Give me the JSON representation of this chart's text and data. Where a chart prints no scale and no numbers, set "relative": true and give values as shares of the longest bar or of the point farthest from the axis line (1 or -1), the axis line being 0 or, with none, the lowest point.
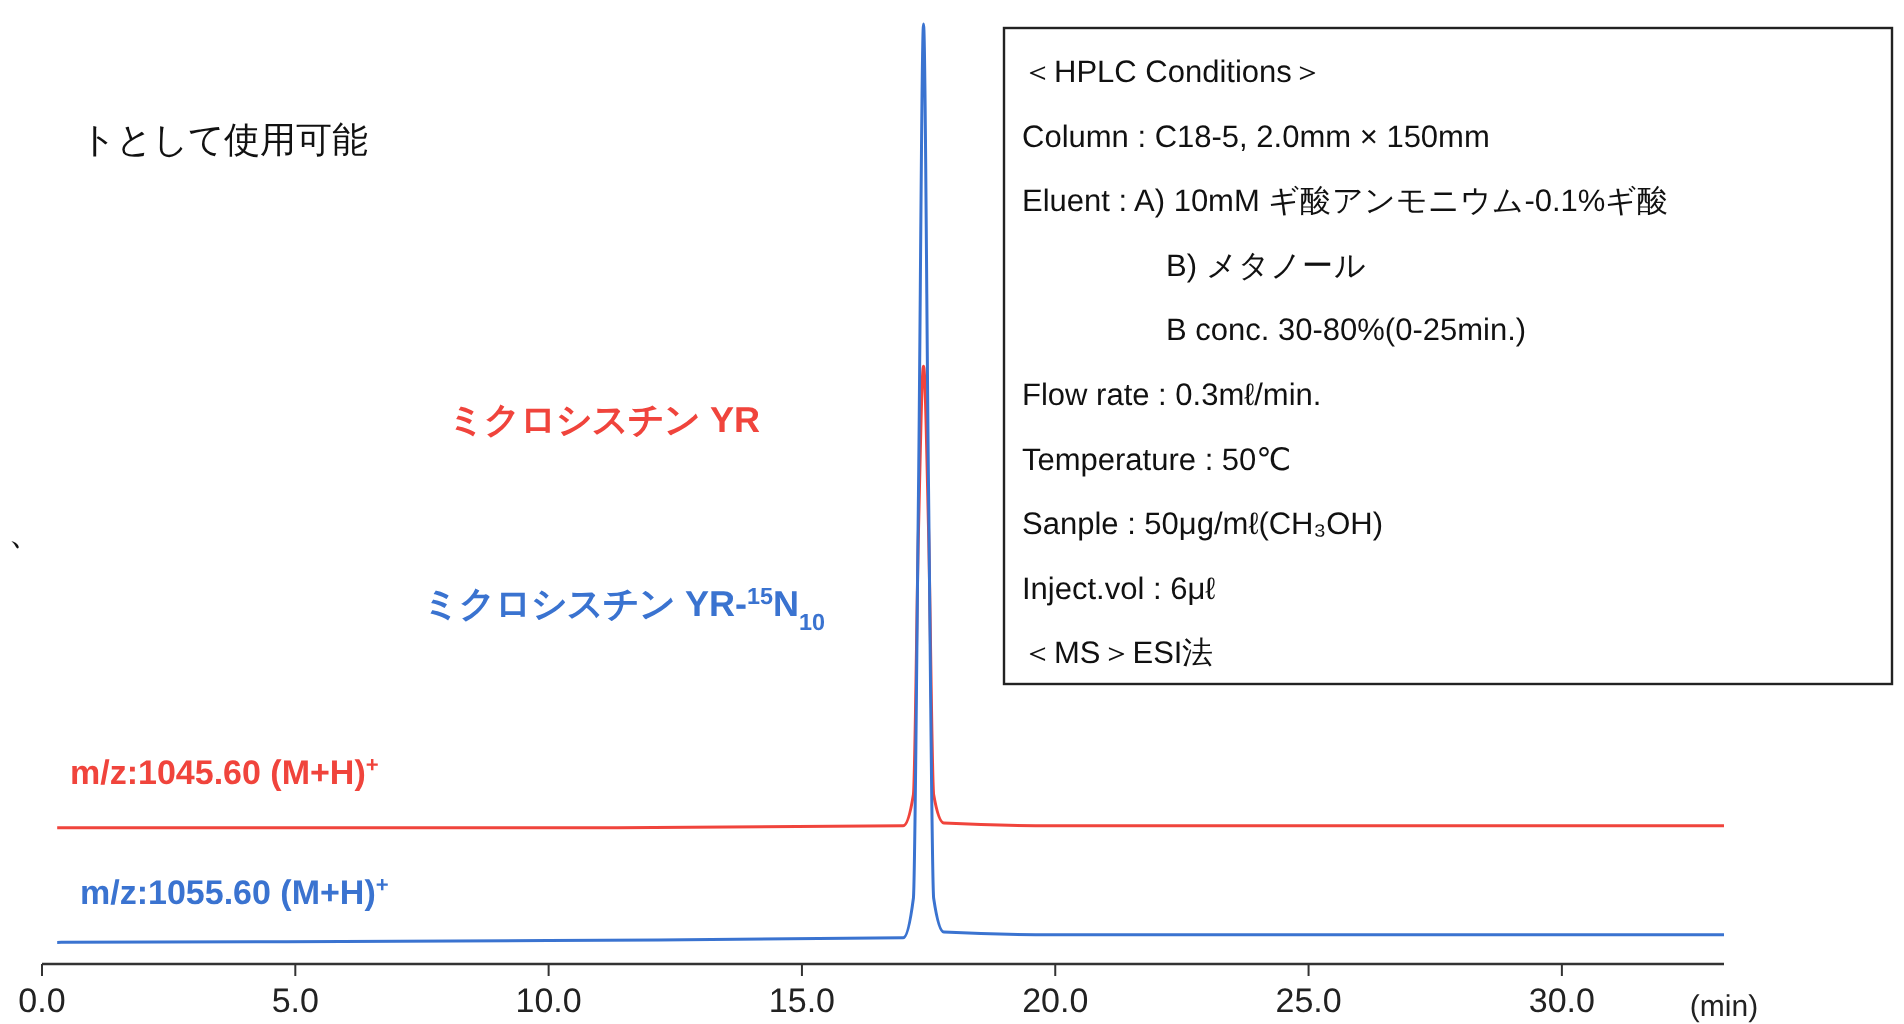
{
  "chart_data": {
    "type": "line",
    "relative": true,
    "xlabel": "(min)",
    "xlim": [
      0,
      33.2
    ],
    "xticks": [
      {
        "value": 0,
        "label": "0.0"
      },
      {
        "value": 5,
        "label": "5.0"
      },
      {
        "value": 10,
        "label": "10.0"
      },
      {
        "value": 15,
        "label": "15.0"
      },
      {
        "value": 20,
        "label": "20.0"
      },
      {
        "value": 25,
        "label": "25.0"
      },
      {
        "value": 30,
        "label": "30.0"
      }
    ],
    "grid": false,
    "marker": "none",
    "line_style": "solid",
    "series": [
      {
        "name": "m/z:1045.60 (M+H)$^{+}$",
        "color": "#f0443c",
        "x": [
          0.3,
          10,
          17.0,
          17.2,
          17.3,
          17.4,
          17.5,
          17.6,
          17.8,
          20,
          33.2
        ],
        "values": [
          0.145,
          0.145,
          0.147,
          0.18,
          0.46,
          0.636,
          0.46,
          0.18,
          0.15,
          0.147,
          0.147
        ]
      },
      {
        "name": "m/z:1055.60 (M+H)$^{+}$",
        "color": "#3a73d0",
        "x": [
          0.3,
          10,
          17.0,
          17.2,
          17.3,
          17.4,
          17.5,
          17.6,
          17.8,
          20,
          33.2
        ],
        "values": [
          0.023,
          0.025,
          0.028,
          0.07,
          0.5,
          1,
          0.5,
          0.07,
          0.034,
          0.031,
          0.031
        ]
      }
    ],
    "annotations": [
      "ミクロシスチン YR",
      "ミクロシスチン YR-$^{15}$N$_{10}$",
      "＜HPLC Conditions＞",
      "Column : C18-5, 2.0mm × 150mm",
      "Eluent : A) 10mM  ギ酸アンモニウム-0.1%ギ酸",
      "B) メタノール",
      "B conc. 30-80%(0-25min.)",
      "Flow rate : 0.3mℓ/min.",
      "Temperature : 50℃",
      "Sanple : 50μg/mℓ(CH₃OH)",
      "Inject.vol : 6μℓ",
      "＜MS＞ESI法",
      "トとして使用可能",
      "、"
    ]
  }
}
